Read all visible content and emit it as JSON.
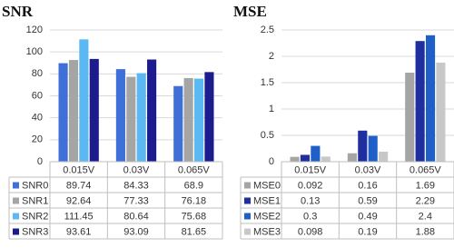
{
  "chart_data": [
    {
      "type": "bar",
      "title": "SNR",
      "categories": [
        "0.015V",
        "0.03V",
        "0.065V"
      ],
      "series": [
        {
          "name": "SNR0",
          "color": "#3f6fd8",
          "values": [
            89.74,
            84.33,
            68.9
          ]
        },
        {
          "name": "SNR1",
          "color": "#a5a5a5",
          "values": [
            92.64,
            77.33,
            76.18
          ]
        },
        {
          "name": "SNR2",
          "color": "#5cb8f2",
          "values": [
            111.45,
            80.64,
            75.68
          ]
        },
        {
          "name": "SNR3",
          "color": "#1c1c8f",
          "values": [
            93.61,
            93.09,
            81.65
          ]
        }
      ],
      "ylim": [
        0,
        120
      ],
      "yticks": [
        0,
        20,
        40,
        60,
        80,
        100,
        120
      ],
      "grid": true
    },
    {
      "type": "bar",
      "title": "MSE",
      "categories": [
        "0.015V",
        "0.03V",
        "0.065V"
      ],
      "series": [
        {
          "name": "MSE0",
          "color": "#a5a5a5",
          "values": [
            0.092,
            0.16,
            1.69
          ]
        },
        {
          "name": "MSE1",
          "color": "#1f2f9f",
          "values": [
            0.13,
            0.59,
            2.29
          ]
        },
        {
          "name": "MSE2",
          "color": "#1f5fc8",
          "values": [
            0.3,
            0.49,
            2.4
          ]
        },
        {
          "name": "MSE3",
          "color": "#c8c8c8",
          "values": [
            0.098,
            0.19,
            1.88
          ]
        }
      ],
      "ylim": [
        0,
        2.5
      ],
      "yticks": [
        0,
        0.5,
        1,
        1.5,
        2,
        2.5
      ],
      "grid": true
    }
  ]
}
